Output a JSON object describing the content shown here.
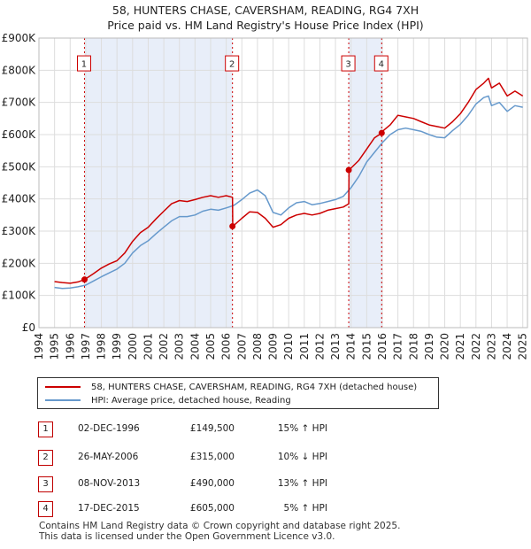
{
  "chart_data": {
    "type": "line",
    "title": "58, HUNTERS CHASE, CAVERSHAM, READING, RG4 7XH",
    "subtitle": "Price paid vs. HM Land Registry's House Price Index (HPI)",
    "xlabel": "",
    "ylabel": "",
    "xlim": [
      1994,
      2025.3
    ],
    "ylim": [
      0,
      900000
    ],
    "x_ticks": [
      "1994",
      "1995",
      "1996",
      "1997",
      "1998",
      "1999",
      "2000",
      "2001",
      "2002",
      "2003",
      "2004",
      "2005",
      "2006",
      "2007",
      "2008",
      "2009",
      "2010",
      "2011",
      "2012",
      "2013",
      "2014",
      "2015",
      "2016",
      "2017",
      "2018",
      "2019",
      "2020",
      "2021",
      "2022",
      "2023",
      "2024",
      "2025"
    ],
    "y_ticks": [
      {
        "value": 0,
        "label": "£0"
      },
      {
        "value": 100000,
        "label": "£100K"
      },
      {
        "value": 200000,
        "label": "£200K"
      },
      {
        "value": 300000,
        "label": "£300K"
      },
      {
        "value": 400000,
        "label": "£400K"
      },
      {
        "value": 500000,
        "label": "£500K"
      },
      {
        "value": 600000,
        "label": "£600K"
      },
      {
        "value": 700000,
        "label": "£700K"
      },
      {
        "value": 800000,
        "label": "£800K"
      },
      {
        "value": 900000,
        "label": "£900K"
      }
    ],
    "grid": true,
    "shaded_periods": [
      [
        1996.92,
        2006.4
      ],
      [
        2013.85,
        2015.96
      ]
    ],
    "series": [
      {
        "name": "58, HUNTERS CHASE, CAVERSHAM, READING, RG4 7XH (detached house)",
        "color": "#cc0000",
        "x": [
          1995.0,
          1995.5,
          1996.0,
          1996.5,
          1996.92,
          1997.5,
          1998.0,
          1998.5,
          1999.0,
          1999.5,
          2000.0,
          2000.5,
          2001.0,
          2001.5,
          2002.0,
          2002.5,
          2003.0,
          2003.5,
          2004.0,
          2004.5,
          2005.0,
          2005.5,
          2006.0,
          2006.4,
          2006.42,
          2007.0,
          2007.5,
          2008.0,
          2008.5,
          2009.0,
          2009.5,
          2010.0,
          2010.5,
          2011.0,
          2011.5,
          2012.0,
          2012.5,
          2013.0,
          2013.5,
          2013.85,
          2013.87,
          2014.5,
          2015.0,
          2015.5,
          2015.96,
          2016.0,
          2016.5,
          2017.0,
          2017.5,
          2018.0,
          2018.5,
          2019.0,
          2019.5,
          2020.0,
          2020.5,
          2021.0,
          2021.5,
          2022.0,
          2022.5,
          2022.8,
          2023.0,
          2023.5,
          2024.0,
          2024.5,
          2025.0
        ],
        "y": [
          143000,
          140000,
          138000,
          142000,
          149500,
          168000,
          185000,
          198000,
          208000,
          232000,
          268000,
          295000,
          312000,
          338000,
          362000,
          385000,
          395000,
          392000,
          398000,
          405000,
          410000,
          405000,
          410000,
          405000,
          315000,
          340000,
          360000,
          358000,
          340000,
          312000,
          320000,
          340000,
          350000,
          355000,
          350000,
          355000,
          365000,
          370000,
          375000,
          385000,
          490000,
          520000,
          555000,
          590000,
          605000,
          610000,
          630000,
          660000,
          655000,
          650000,
          640000,
          630000,
          625000,
          620000,
          640000,
          665000,
          700000,
          740000,
          760000,
          775000,
          745000,
          760000,
          720000,
          735000,
          720000
        ]
      },
      {
        "name": "HPI: Average price, detached house, Reading",
        "color": "#6699cc",
        "x": [
          1995.0,
          1995.5,
          1996.0,
          1996.5,
          1997.0,
          1997.5,
          1998.0,
          1998.5,
          1999.0,
          1999.5,
          2000.0,
          2000.5,
          2001.0,
          2001.5,
          2002.0,
          2002.5,
          2003.0,
          2003.5,
          2004.0,
          2004.5,
          2005.0,
          2005.5,
          2006.0,
          2006.5,
          2007.0,
          2007.5,
          2008.0,
          2008.5,
          2009.0,
          2009.5,
          2010.0,
          2010.5,
          2011.0,
          2011.5,
          2012.0,
          2012.5,
          2013.0,
          2013.5,
          2014.0,
          2014.5,
          2015.0,
          2015.5,
          2016.0,
          2016.5,
          2017.0,
          2017.5,
          2018.0,
          2018.5,
          2019.0,
          2019.5,
          2020.0,
          2020.5,
          2021.0,
          2021.5,
          2022.0,
          2022.5,
          2022.8,
          2023.0,
          2023.5,
          2024.0,
          2024.5,
          2025.0
        ],
        "y": [
          125000,
          122000,
          123000,
          127000,
          132000,
          145000,
          158000,
          170000,
          182000,
          200000,
          232000,
          255000,
          270000,
          292000,
          312000,
          332000,
          345000,
          345000,
          350000,
          362000,
          368000,
          365000,
          372000,
          380000,
          398000,
          418000,
          428000,
          410000,
          358000,
          350000,
          372000,
          388000,
          392000,
          382000,
          386000,
          392000,
          398000,
          408000,
          435000,
          470000,
          515000,
          545000,
          575000,
          600000,
          615000,
          620000,
          615000,
          610000,
          600000,
          592000,
          590000,
          612000,
          632000,
          660000,
          695000,
          715000,
          720000,
          690000,
          700000,
          672000,
          690000,
          685000
        ]
      }
    ],
    "sales": [
      {
        "id": "1",
        "x": 1996.92,
        "y": 149500,
        "date": "02-DEC-1996",
        "price": "£149,500",
        "delta": "15% ↑ HPI"
      },
      {
        "id": "2",
        "x": 2006.4,
        "y": 315000,
        "date": "26-MAY-2006",
        "price": "£315,000",
        "delta": "10% ↓ HPI"
      },
      {
        "id": "3",
        "x": 2013.85,
        "y": 490000,
        "date": "08-NOV-2013",
        "price": "£490,000",
        "delta": "13% ↑ HPI"
      },
      {
        "id": "4",
        "x": 2015.96,
        "y": 605000,
        "date": "17-DEC-2015",
        "price": "£605,000",
        "delta": "5% ↑ HPI"
      }
    ],
    "marker_label_value": 820000
  },
  "legend": {
    "property_label": "58, HUNTERS CHASE, CAVERSHAM, READING, RG4 7XH (detached house)",
    "hpi_label": "HPI: Average price, detached house, Reading"
  },
  "footer": {
    "line1": "Contains HM Land Registry data © Crown copyright and database right 2025.",
    "line2": "This data is licensed under the Open Government Licence v3.0."
  },
  "colors": {
    "property": "#cc0000",
    "hpi": "#6699cc",
    "shade": "#e8eef9",
    "grid": "#dddddd"
  }
}
